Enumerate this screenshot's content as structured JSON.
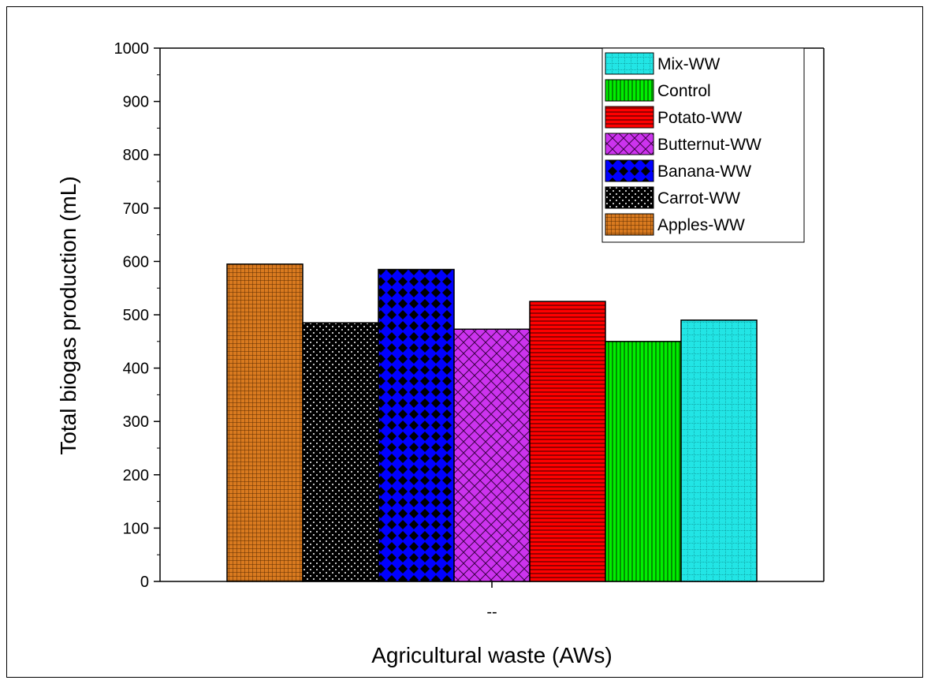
{
  "chart_data": {
    "type": "bar",
    "xlabel": "Agricultural waste (AWs)",
    "ylabel": "Total biogas production (mL)",
    "x_tick_label": "--",
    "ylim": [
      0,
      1000
    ],
    "yticks": [
      0,
      100,
      200,
      300,
      400,
      500,
      600,
      700,
      800,
      900,
      1000
    ],
    "series": [
      {
        "name": "Apples-WW",
        "value": 595,
        "color": "#d97a1f",
        "pattern": "fine-grid"
      },
      {
        "name": "Carrot-WW",
        "value": 485,
        "color": "#000000",
        "pattern": "dots"
      },
      {
        "name": "Banana-WW",
        "value": 585,
        "color": "#0000ff",
        "pattern": "diamond-check"
      },
      {
        "name": "Butternut-WW",
        "value": 473,
        "color": "#cc33ee",
        "pattern": "crosshatch"
      },
      {
        "name": "Potato-WW",
        "value": 525,
        "color": "#ff0000",
        "pattern": "horizontal-lines"
      },
      {
        "name": "Control",
        "value": 450,
        "color": "#00ee00",
        "pattern": "vertical-lines"
      },
      {
        "name": "Mix-WW",
        "value": 490,
        "color": "#22e5e5",
        "pattern": "dotted-grid"
      }
    ],
    "legend_order": [
      "Mix-WW",
      "Control",
      "Potato-WW",
      "Butternut-WW",
      "Banana-WW",
      "Carrot-WW",
      "Apples-WW"
    ],
    "legend_position": "top-right",
    "grid": false
  }
}
